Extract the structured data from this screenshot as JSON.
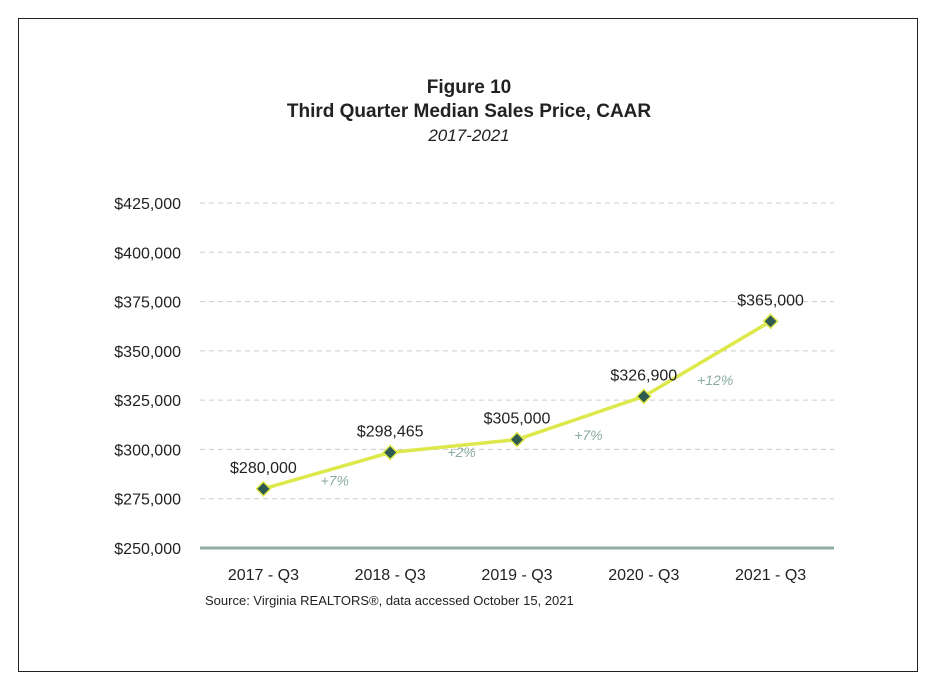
{
  "figure": {
    "label": "Figure 10",
    "title": "Third Quarter Median Sales Price, CAAR",
    "subtitle": "2017-2021"
  },
  "source": "Source: Virginia REALTORS®, data accessed October 15, 2021",
  "colors": {
    "line": "#dde84a",
    "marker": "#2e5a4f",
    "grid": "#cccccc",
    "baseline": "#8fae9f",
    "pct_text": "#8aaba0"
  },
  "chart_data": {
    "type": "line",
    "title": "Third Quarter Median Sales Price, CAAR",
    "subtitle": "2017-2021",
    "categories": [
      "2017 - Q3",
      "2018 - Q3",
      "2019 - Q3",
      "2020 - Q3",
      "2021 - Q3"
    ],
    "values": [
      280000,
      298465,
      305000,
      326900,
      365000
    ],
    "data_labels": [
      "$280,000",
      "$298,465",
      "$305,000",
      "$326,900",
      "$365,000"
    ],
    "change_labels": [
      "+7%",
      "+2%",
      "+7%",
      "+12%"
    ],
    "y_ticks": [
      250000,
      275000,
      300000,
      325000,
      350000,
      375000,
      400000,
      425000
    ],
    "y_tick_labels": [
      "$250,000",
      "$275,000",
      "$300,000",
      "$325,000",
      "$350,000",
      "$375,000",
      "$400,000",
      "$425,000"
    ],
    "ylim": [
      250000,
      425000
    ],
    "xlabel": "",
    "ylabel": "",
    "grid": true,
    "legend": "none"
  }
}
